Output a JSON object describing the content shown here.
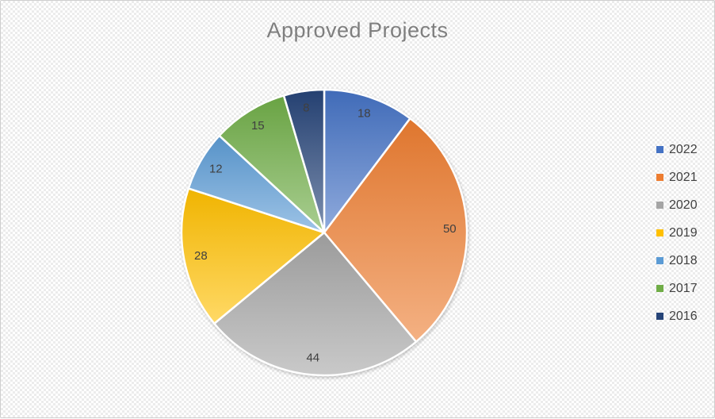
{
  "canvas": {
    "border_color": "#cfcfcf",
    "background_tile_color": "#ececec",
    "background_base_color": "#ffffff"
  },
  "chart_data": {
    "type": "pie",
    "title": "Approved Projects",
    "title_color": "#7f7f7f",
    "categories": [
      "2022",
      "2021",
      "2020",
      "2019",
      "2018",
      "2017",
      "2016"
    ],
    "values": [
      18,
      50,
      44,
      28,
      12,
      15,
      8
    ],
    "data_labels": [
      "18",
      "50",
      "44",
      "28",
      "12",
      "15",
      "8"
    ],
    "total": 175,
    "colors": [
      "#4472C4",
      "#ED7D31",
      "#A5A5A5",
      "#FFC000",
      "#5B9BD5",
      "#70AD47",
      "#264478"
    ],
    "slice_border_color": "#ffffff",
    "label_color": "#404040",
    "legend_position": "right",
    "legend_text_color": "#404040",
    "start_angle_deg": 0,
    "direction": "clockwise"
  }
}
